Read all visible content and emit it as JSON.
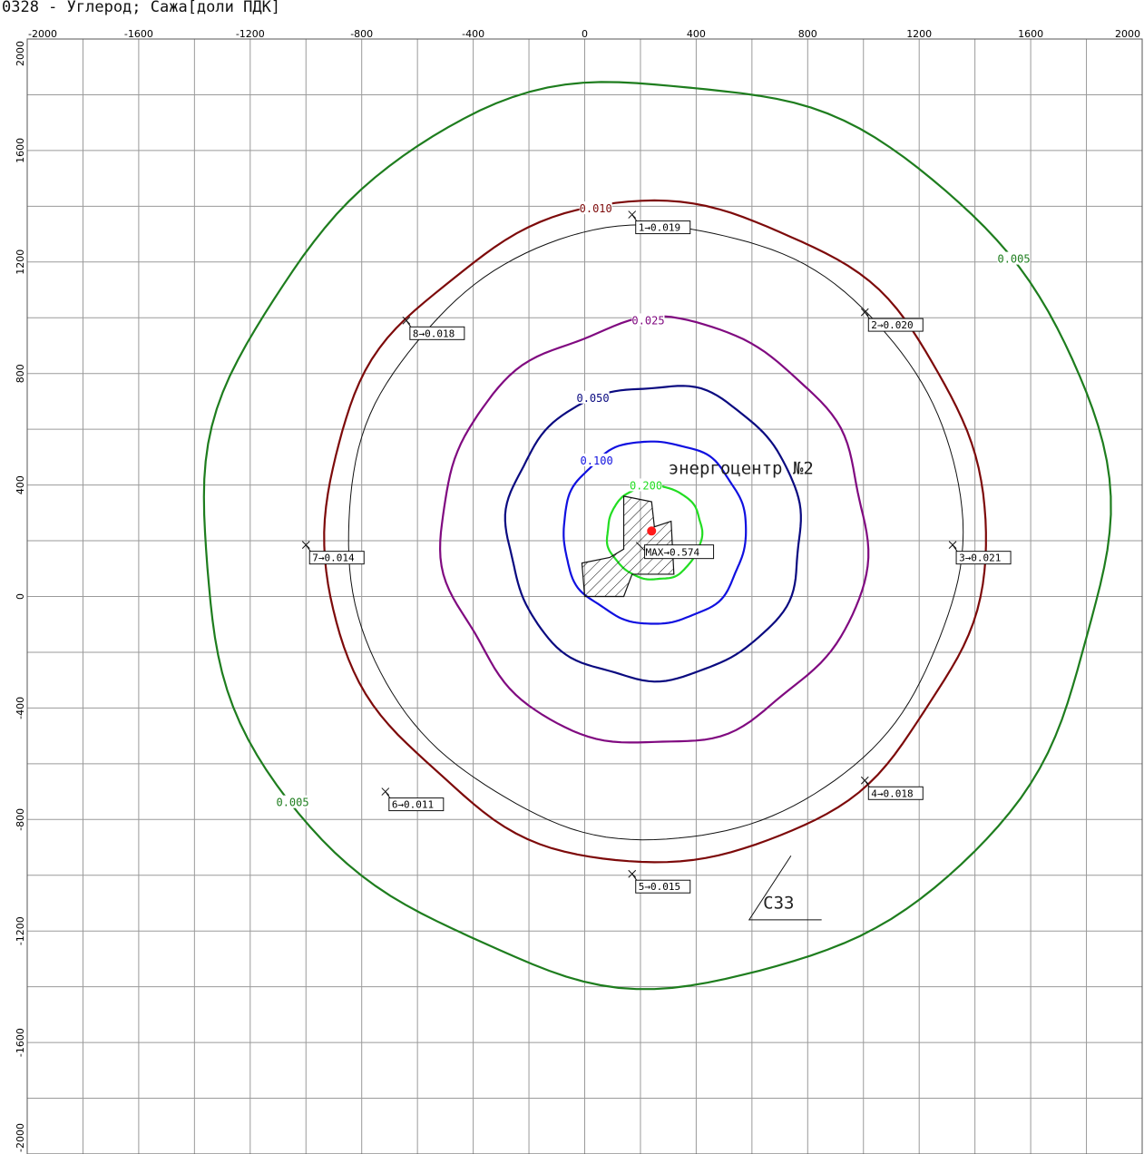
{
  "title": "0328 - Углерод; Сажа[доли ПДК]",
  "axes": {
    "x_ticks": [
      "-2000",
      "-1600",
      "-1200",
      "-800",
      "-400",
      "0",
      "400",
      "800",
      "1200",
      "1600",
      "2000"
    ],
    "y_ticks": [
      "2000",
      "1600",
      "1200",
      "800",
      "400",
      "0",
      "-400",
      "-800",
      "-1200",
      "-1600",
      "-2000"
    ],
    "x_range": [
      -2000,
      2000
    ],
    "y_range": [
      -2000,
      2000
    ],
    "grid_step": 200,
    "grid": true
  },
  "isolines": [
    {
      "level": 0.005,
      "label": "0.005",
      "color": "#1e7d1e",
      "label_count": 2,
      "radius": 1620
    },
    {
      "level": 0.01,
      "label": "0.010",
      "color": "#7d0a0a",
      "label_count": 1,
      "radius": 1180
    },
    {
      "level": 0.025,
      "label": "0.025",
      "color": "#800a80",
      "label_count": 1,
      "radius": 760
    },
    {
      "level": 0.05,
      "label": "0.050",
      "color": "#0a0a80",
      "label_count": 1,
      "radius": 530
    },
    {
      "level": 0.1,
      "label": "0.100",
      "color": "#1010e0",
      "label_count": 1,
      "radius": 330
    },
    {
      "level": 0.2,
      "label": "0.200",
      "color": "#22dd22",
      "label_count": 1,
      "radius": 170
    }
  ],
  "control_points": [
    {
      "id": "1",
      "text": "1→0.019",
      "value": 0.019,
      "x": 170,
      "y": 1370
    },
    {
      "id": "2",
      "text": "2→0.020",
      "value": 0.02,
      "x": 1005,
      "y": 1020
    },
    {
      "id": "3",
      "text": "3→0.021",
      "value": 0.021,
      "x": 1320,
      "y": 185
    },
    {
      "id": "4",
      "text": "4→0.018",
      "value": 0.018,
      "x": 1005,
      "y": -660
    },
    {
      "id": "5",
      "text": "5→0.015",
      "value": 0.015,
      "x": 170,
      "y": -995
    },
    {
      "id": "6",
      "text": "6→0.011",
      "value": 0.011,
      "x": -715,
      "y": -700
    },
    {
      "id": "7",
      "text": "7→0.014",
      "value": 0.014,
      "x": -1000,
      "y": 185
    },
    {
      "id": "8",
      "text": "8→0.018",
      "value": 0.018,
      "x": -640,
      "y": 990
    }
  ],
  "max_point": {
    "text": "MAX→0.574",
    "value": 0.574,
    "x": 240,
    "y": 235
  },
  "site_label": "энергоцентр №2",
  "szz_label": "СЗЗ"
}
